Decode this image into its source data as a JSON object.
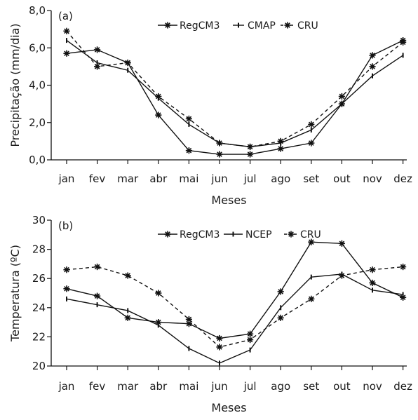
{
  "chart_data": [
    {
      "type": "line",
      "panel_label": "(a)",
      "xlabel": "Meses",
      "ylabel": "Precipitação (mm/dia)",
      "categories": [
        "jan",
        "fev",
        "mar",
        "abr",
        "mai",
        "jun",
        "jul",
        "ago",
        "set",
        "out",
        "nov",
        "dez"
      ],
      "ylim": [
        0,
        8
      ],
      "yticks": [
        0,
        2,
        4,
        6,
        8
      ],
      "ytick_labels": [
        "0,0",
        "2,0",
        "4,0",
        "6,0",
        "8,0"
      ],
      "legend_position": "top-right",
      "series": [
        {
          "name": "RegCM3",
          "style": "solid-star",
          "values": [
            5.7,
            5.9,
            5.2,
            2.4,
            0.5,
            0.3,
            0.3,
            0.6,
            0.9,
            3.0,
            5.6,
            6.4
          ]
        },
        {
          "name": "CMAP",
          "style": "solid-bar",
          "values": [
            6.4,
            5.2,
            4.8,
            3.3,
            1.9,
            0.9,
            0.7,
            0.9,
            1.6,
            3.0,
            4.5,
            5.6
          ]
        },
        {
          "name": "CRU",
          "style": "dashed-star",
          "values": [
            6.9,
            5.0,
            5.2,
            3.4,
            2.2,
            0.9,
            0.7,
            1.0,
            1.9,
            3.4,
            5.0,
            6.3
          ]
        }
      ]
    },
    {
      "type": "line",
      "panel_label": "(b)",
      "xlabel": "Meses",
      "ylabel": "Temperatura (ºC)",
      "categories": [
        "jan",
        "fev",
        "mar",
        "abr",
        "mai",
        "jun",
        "jul",
        "ago",
        "set",
        "out",
        "nov",
        "dez"
      ],
      "ylim": [
        20,
        30
      ],
      "yticks": [
        20,
        22,
        24,
        26,
        28,
        30
      ],
      "ytick_labels": [
        "20",
        "22",
        "24",
        "26",
        "28",
        "30"
      ],
      "legend_position": "top-center",
      "series": [
        {
          "name": "RegCM3",
          "style": "solid-star",
          "values": [
            25.3,
            24.8,
            23.3,
            23.0,
            22.9,
            21.9,
            22.2,
            25.1,
            28.5,
            28.4,
            25.7,
            24.7
          ]
        },
        {
          "name": "NCEP",
          "style": "solid-bar",
          "values": [
            24.6,
            24.2,
            23.8,
            22.8,
            21.2,
            20.2,
            21.1,
            24.0,
            26.1,
            26.3,
            25.2,
            24.9
          ]
        },
        {
          "name": "CRU",
          "style": "dashed-star",
          "values": [
            26.6,
            26.8,
            26.2,
            25.0,
            23.2,
            21.3,
            21.8,
            23.3,
            24.6,
            26.2,
            26.6,
            26.8
          ]
        }
      ]
    }
  ]
}
